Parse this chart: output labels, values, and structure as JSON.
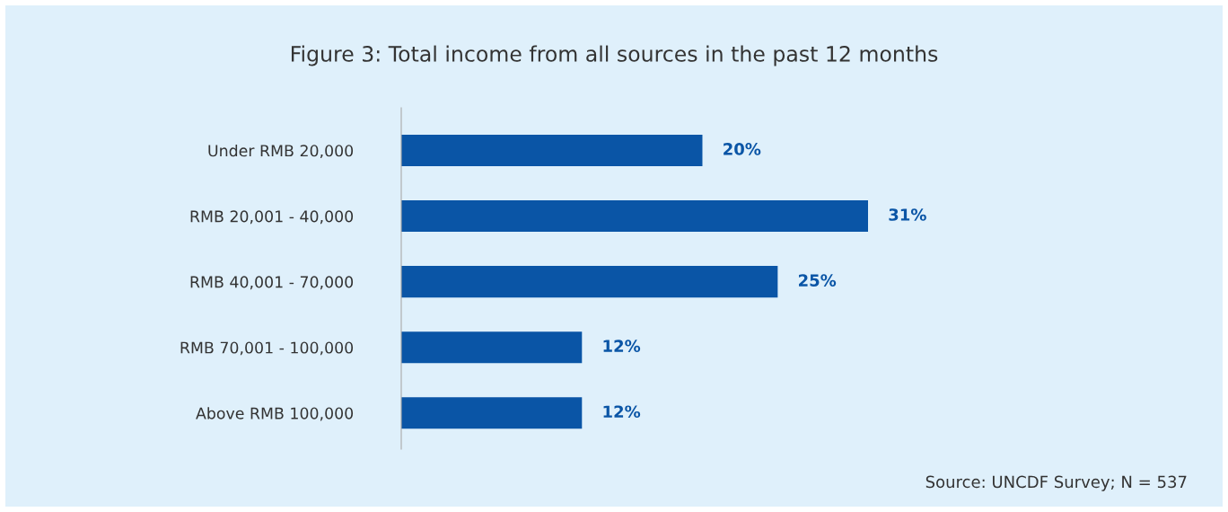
{
  "chart_data": {
    "type": "bar",
    "orientation": "horizontal",
    "title": "Figure 3: Total income from all sources in the past 12 months",
    "categories": [
      "Under RMB 20,000",
      "RMB 20,001 - 40,000",
      "RMB 40,001 - 70,000",
      "RMB 70,001 - 100,000",
      "Above RMB 100,000"
    ],
    "values": [
      20,
      31,
      25,
      12,
      12
    ],
    "value_labels": [
      "20%",
      "31%",
      "25%",
      "12%",
      "12%"
    ],
    "color": "#0a55a6",
    "annotations": [
      "Source: UNCDF Survey; N = 537"
    ],
    "grid": false
  }
}
